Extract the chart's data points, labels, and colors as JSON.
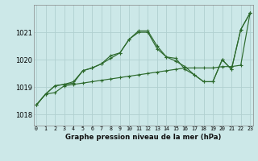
{
  "title": "Graphe pression niveau de la mer (hPa)",
  "bg_color": "#cce8e8",
  "grid_color": "#b0d0d0",
  "line_color": "#2d6a2d",
  "x_labels": [
    "0",
    "1",
    "2",
    "3",
    "4",
    "5",
    "6",
    "7",
    "8",
    "9",
    "10",
    "11",
    "12",
    "13",
    "14",
    "15",
    "16",
    "17",
    "18",
    "19",
    "20",
    "21",
    "22",
    "23"
  ],
  "ylim": [
    1017.6,
    1022.0
  ],
  "yticks": [
    1018,
    1019,
    1020,
    1021
  ],
  "line1": [
    1018.35,
    1018.75,
    1018.8,
    1019.05,
    1019.1,
    1019.15,
    1019.2,
    1019.25,
    1019.3,
    1019.35,
    1019.4,
    1019.45,
    1019.5,
    1019.55,
    1019.6,
    1019.65,
    1019.7,
    1019.7,
    1019.7,
    1019.7,
    1019.75,
    1019.75,
    1019.8,
    1021.7
  ],
  "line2": [
    1018.35,
    1018.75,
    1019.05,
    1019.1,
    1019.15,
    1019.6,
    1019.7,
    1019.85,
    1020.05,
    1020.25,
    1020.75,
    1021.0,
    1021.0,
    1020.4,
    1020.1,
    1019.95,
    1019.75,
    1019.45,
    1019.2,
    1019.2,
    1020.0,
    1019.65,
    1021.1,
    1021.7
  ],
  "line3": [
    1018.35,
    1018.75,
    1019.05,
    1019.1,
    1019.2,
    1019.6,
    1019.7,
    1019.85,
    1020.15,
    1020.25,
    1020.75,
    1021.05,
    1021.05,
    1020.5,
    1020.1,
    1020.05,
    1019.65,
    1019.45,
    1019.2,
    1019.2,
    1020.0,
    1019.65,
    1021.1,
    1021.7
  ]
}
